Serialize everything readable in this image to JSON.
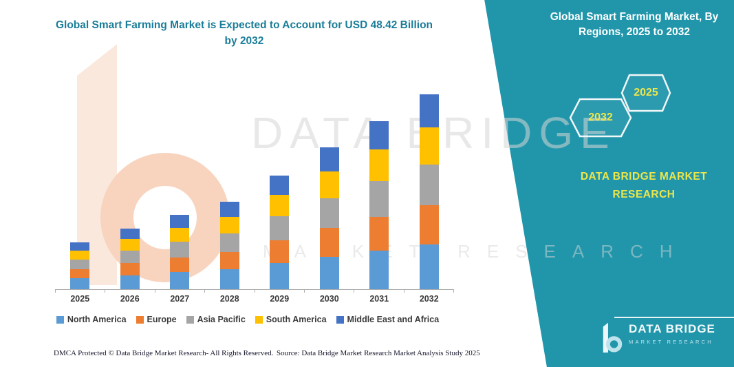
{
  "page": {
    "title_line1": "Global Smart Farming Market is Expected to Account for USD 48.42 Billion",
    "title_line2": "by 2032"
  },
  "right_panel": {
    "heading_line1": "Global Smart Farming Market, By",
    "heading_line2": "Regions, 2025 to 2032",
    "hexagon_back_label": "2032",
    "hexagon_front_label": "2025",
    "brand_line1": "DATA BRIDGE MARKET",
    "brand_line2": "RESEARCH",
    "logo_title": "DATA BRIDGE",
    "logo_subtitle": "MARKET RESEARCH"
  },
  "watermark": {
    "line1": "DATA BRIDGE",
    "line2": "MARKET RESEARCH"
  },
  "footer": {
    "dmca": "DMCA Protected © Data Bridge Market Research-  All Rights Reserved.",
    "source": "Source: Data Bridge Market Research  Market Analysis Study 2025"
  },
  "colors": {
    "teal_background": "#2196AB",
    "title_teal": "#1A7D99",
    "accent_yellow": "#EDE649"
  },
  "chart_data": {
    "type": "bar",
    "stacked": true,
    "title": "Global Smart Farming Market is Expected to Account for USD 48.42 Billion by 2032",
    "categories": [
      "2025",
      "2026",
      "2027",
      "2028",
      "2029",
      "2030",
      "2031",
      "2032"
    ],
    "series": [
      {
        "name": "North America",
        "color": "#5B9BD5",
        "values": [
          2.7,
          3.5,
          4.2,
          5.0,
          6.5,
          8.1,
          9.6,
          11.1
        ]
      },
      {
        "name": "Europe",
        "color": "#ED7D31",
        "values": [
          2.3,
          3.0,
          3.7,
          4.3,
          5.7,
          7.1,
          8.4,
          9.7
        ]
      },
      {
        "name": "Asia Pacific",
        "color": "#A5A5A5",
        "values": [
          2.4,
          3.1,
          3.9,
          4.6,
          5.9,
          7.4,
          8.8,
          10.2
        ]
      },
      {
        "name": "South America",
        "color": "#FFC000",
        "values": [
          2.2,
          2.9,
          3.5,
          4.1,
          5.4,
          6.7,
          7.9,
          9.2
        ]
      },
      {
        "name": "Middle East and Africa",
        "color": "#4472C4",
        "values": [
          2.0,
          2.5,
          3.1,
          3.7,
          4.8,
          6.0,
          7.1,
          8.2
        ]
      }
    ],
    "totals": [
      11.6,
      15.0,
      18.4,
      21.7,
      28.3,
      35.3,
      41.8,
      48.42
    ],
    "unit": "USD Billion",
    "ylim": [
      0,
      50
    ],
    "grid": false,
    "legend_position": "bottom"
  }
}
